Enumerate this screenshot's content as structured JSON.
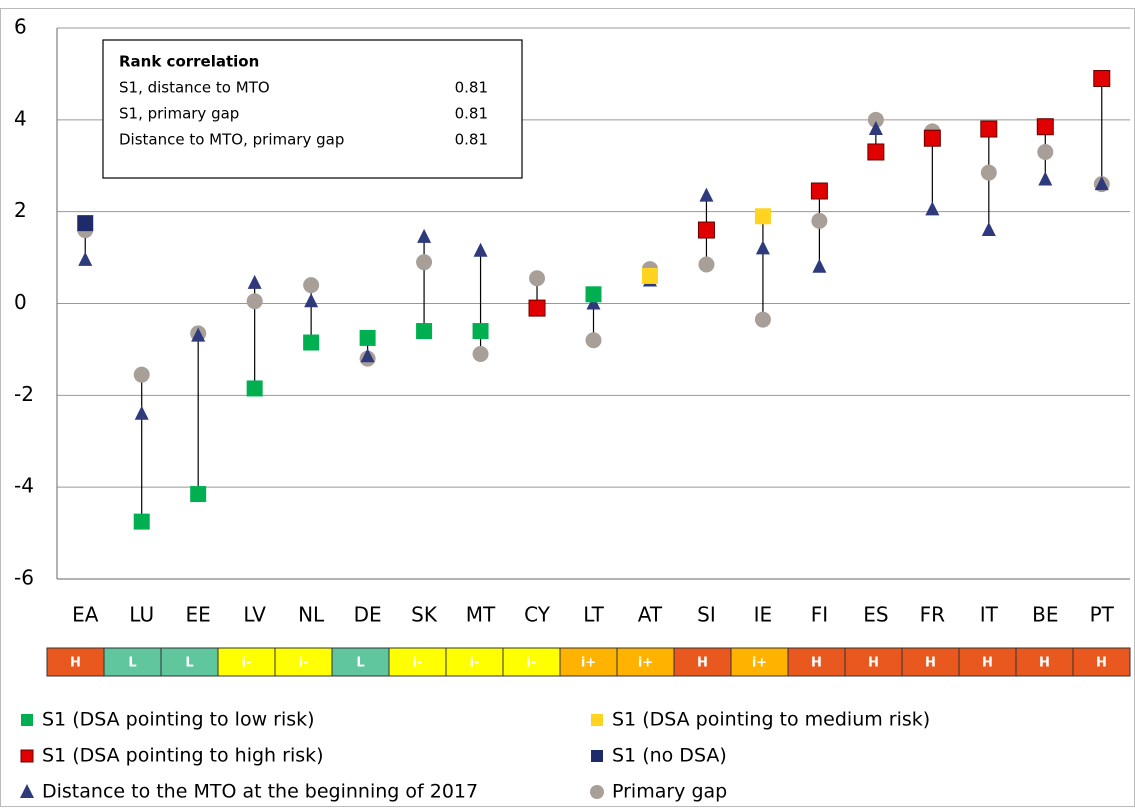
{
  "chart_data": {
    "type": "dot-range",
    "categories": [
      "EA",
      "LU",
      "EE",
      "LV",
      "NL",
      "DE",
      "SK",
      "MT",
      "CY",
      "LT",
      "AT",
      "SI",
      "IE",
      "FI",
      "ES",
      "FR",
      "IT",
      "BE",
      "PT"
    ],
    "series": [
      {
        "name": "S1 (DSA pointing to low risk)",
        "color": "#00b050",
        "marker": "square",
        "values": [
          null,
          -4.75,
          -4.15,
          -1.85,
          -0.85,
          -0.75,
          -0.6,
          -0.6,
          null,
          0.2,
          null,
          null,
          null,
          null,
          null,
          null,
          null,
          null,
          null
        ]
      },
      {
        "name": "S1 (DSA pointing to medium risk)",
        "color": "#ffd320",
        "marker": "square",
        "values": [
          null,
          null,
          null,
          null,
          null,
          null,
          null,
          null,
          null,
          null,
          0.6,
          null,
          1.9,
          null,
          null,
          null,
          null,
          null,
          null
        ]
      },
      {
        "name": "S1 (DSA pointing to high risk)",
        "color": "#e00000",
        "marker": "square",
        "values": [
          null,
          null,
          null,
          null,
          null,
          null,
          null,
          null,
          -0.1,
          null,
          null,
          1.6,
          null,
          2.45,
          3.3,
          3.6,
          3.8,
          3.85,
          4.9
        ]
      },
      {
        "name": "S1 (no DSA)",
        "color": "#1f2a6a",
        "marker": "square",
        "values": [
          1.75,
          null,
          null,
          null,
          null,
          null,
          null,
          null,
          null,
          null,
          null,
          null,
          null,
          null,
          null,
          null,
          null,
          null,
          null
        ]
      },
      {
        "name": "Distance to the MTO at the beginning of 2017",
        "color": "#2e3a7c",
        "marker": "triangle",
        "values": [
          0.95,
          -2.4,
          -0.7,
          0.45,
          0.05,
          -1.15,
          1.45,
          1.15,
          -0.15,
          0.0,
          0.5,
          2.35,
          1.2,
          0.8,
          3.8,
          2.05,
          1.6,
          2.7,
          2.6
        ]
      },
      {
        "name": "Primary gap",
        "color": "#a89f98",
        "marker": "circle",
        "values": [
          1.6,
          -1.55,
          -0.65,
          0.05,
          0.4,
          -1.2,
          0.9,
          -1.1,
          0.55,
          -0.8,
          0.75,
          0.85,
          -0.35,
          1.8,
          4.0,
          3.75,
          2.85,
          3.3,
          2.6
        ]
      }
    ],
    "risk_labels": [
      "H",
      "L",
      "L",
      "i-",
      "i-",
      "L",
      "i-",
      "i-",
      "i-",
      "i+",
      "i+",
      "H",
      "i+",
      "H",
      "H",
      "H",
      "H",
      "H",
      "H"
    ],
    "risk_colors": {
      "H": "#e8581f",
      "L": "#5fc69e",
      "i-": "#ffff00",
      "i+": "#ffb300"
    },
    "ylim": [
      -6,
      6
    ],
    "yticks": [
      -6,
      -4,
      -2,
      0,
      2,
      4,
      6
    ],
    "grid": true,
    "annotation_table": {
      "title": "Rank correlation",
      "rows": [
        [
          "S1, distance to MTO",
          0.81
        ],
        [
          "S1, primary gap",
          0.81
        ],
        [
          "Distance to MTO, primary gap",
          0.81
        ]
      ]
    }
  }
}
